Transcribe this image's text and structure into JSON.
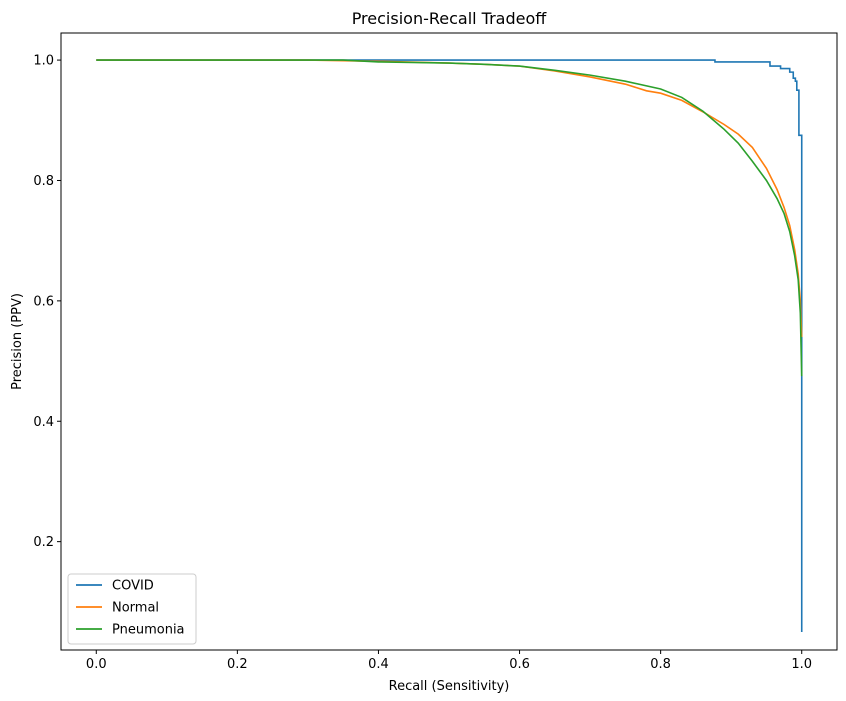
{
  "chart_data": {
    "type": "line",
    "title": "Precision-Recall Tradeoff",
    "xlabel": "Recall (Sensitivity)",
    "ylabel": "Precision (PPV)",
    "xlim": [
      -0.05,
      1.05
    ],
    "ylim": [
      0.02,
      1.045
    ],
    "xticks": [
      0.0,
      0.2,
      0.4,
      0.6,
      0.8,
      1.0
    ],
    "xtick_labels": [
      "0.0",
      "0.2",
      "0.4",
      "0.6",
      "0.8",
      "1.0"
    ],
    "yticks": [
      0.2,
      0.4,
      0.6,
      0.8,
      1.0
    ],
    "ytick_labels": [
      "0.2",
      "0.4",
      "0.6",
      "0.8",
      "1.0"
    ],
    "grid": false,
    "legend": "lower-left",
    "series": [
      {
        "name": "COVID",
        "color": "#1f77b4",
        "step": true,
        "points": [
          [
            0.0,
            1.0
          ],
          [
            0.877,
            1.0
          ],
          [
            0.877,
            0.997
          ],
          [
            0.955,
            0.997
          ],
          [
            0.955,
            0.99
          ],
          [
            0.97,
            0.99
          ],
          [
            0.97,
            0.986
          ],
          [
            0.983,
            0.986
          ],
          [
            0.983,
            0.98
          ],
          [
            0.988,
            0.98
          ],
          [
            0.988,
            0.97
          ],
          [
            0.991,
            0.97
          ],
          [
            0.991,
            0.965
          ],
          [
            0.993,
            0.965
          ],
          [
            0.993,
            0.95
          ],
          [
            0.996,
            0.95
          ],
          [
            0.996,
            0.875
          ],
          [
            1.0,
            0.875
          ],
          [
            1.0,
            0.05
          ]
        ]
      },
      {
        "name": "Normal",
        "color": "#ff7f0e",
        "step": false,
        "points": [
          [
            0.0,
            1.0
          ],
          [
            0.3,
            1.0
          ],
          [
            0.35,
            0.999
          ],
          [
            0.4,
            0.998
          ],
          [
            0.5,
            0.995
          ],
          [
            0.55,
            0.993
          ],
          [
            0.6,
            0.99
          ],
          [
            0.65,
            0.982
          ],
          [
            0.7,
            0.972
          ],
          [
            0.75,
            0.96
          ],
          [
            0.78,
            0.949
          ],
          [
            0.8,
            0.945
          ],
          [
            0.83,
            0.933
          ],
          [
            0.86,
            0.914
          ],
          [
            0.89,
            0.893
          ],
          [
            0.91,
            0.877
          ],
          [
            0.93,
            0.855
          ],
          [
            0.95,
            0.82
          ],
          [
            0.965,
            0.785
          ],
          [
            0.975,
            0.755
          ],
          [
            0.983,
            0.725
          ],
          [
            0.99,
            0.685
          ],
          [
            0.995,
            0.645
          ],
          [
            0.998,
            0.6
          ],
          [
            1.0,
            0.54
          ]
        ]
      },
      {
        "name": "Pneumonia",
        "color": "#2ca02c",
        "step": false,
        "points": [
          [
            0.0,
            1.0
          ],
          [
            0.35,
            1.0
          ],
          [
            0.4,
            0.997
          ],
          [
            0.5,
            0.995
          ],
          [
            0.55,
            0.993
          ],
          [
            0.6,
            0.99
          ],
          [
            0.65,
            0.983
          ],
          [
            0.7,
            0.975
          ],
          [
            0.75,
            0.965
          ],
          [
            0.8,
            0.952
          ],
          [
            0.83,
            0.938
          ],
          [
            0.86,
            0.915
          ],
          [
            0.89,
            0.885
          ],
          [
            0.91,
            0.862
          ],
          [
            0.93,
            0.832
          ],
          [
            0.95,
            0.8
          ],
          [
            0.965,
            0.77
          ],
          [
            0.975,
            0.745
          ],
          [
            0.983,
            0.715
          ],
          [
            0.99,
            0.675
          ],
          [
            0.995,
            0.635
          ],
          [
            0.998,
            0.58
          ],
          [
            1.0,
            0.475
          ]
        ]
      }
    ]
  }
}
